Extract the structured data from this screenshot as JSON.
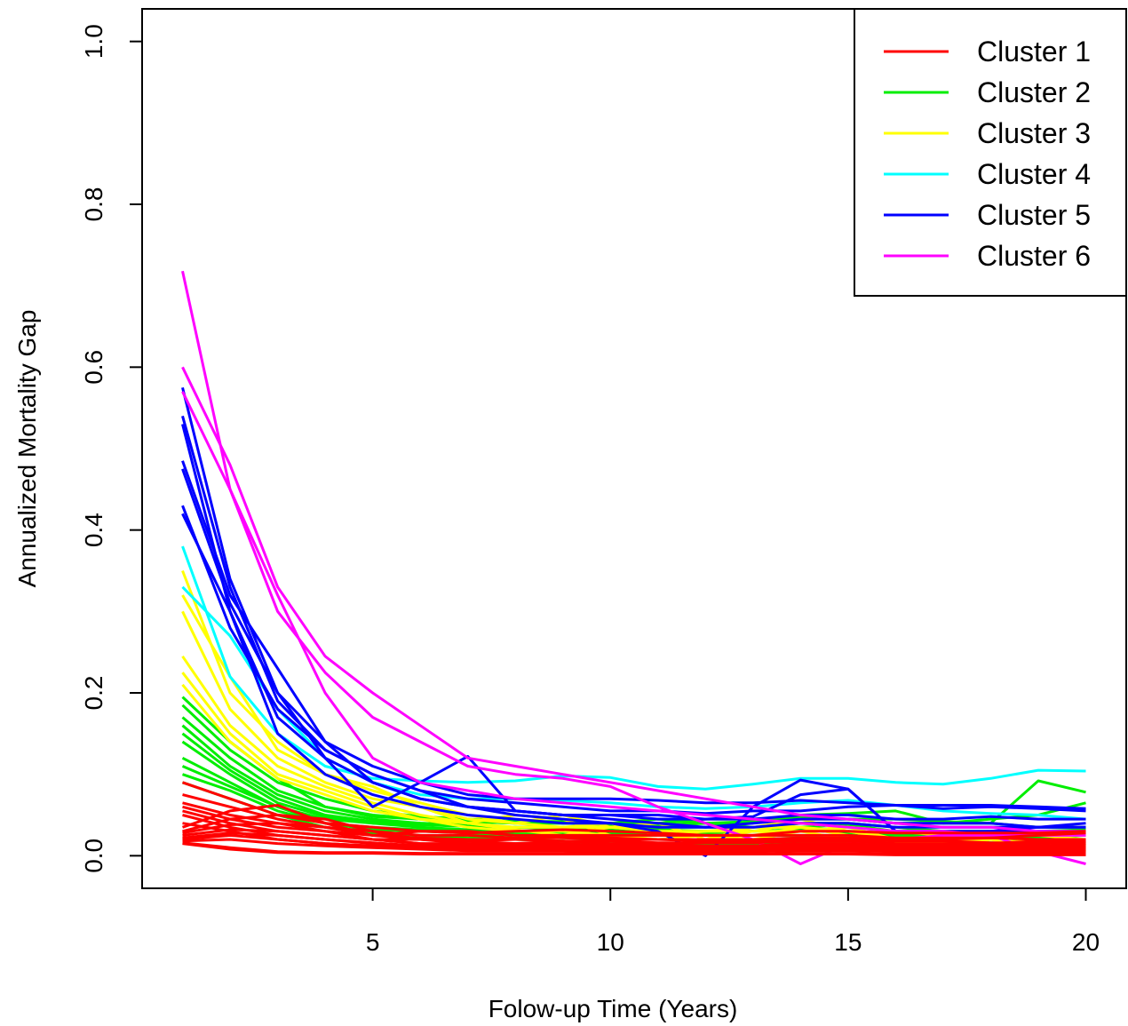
{
  "chart_data": {
    "type": "line",
    "title": "",
    "xlabel": "Folow-up Time (Years)",
    "ylabel": "Annualized Mortality Gap",
    "xlim": [
      0.15,
      20.85
    ],
    "ylim": [
      -0.04,
      1.04
    ],
    "xticks": [
      5,
      10,
      15,
      20
    ],
    "yticks": [
      0.0,
      0.2,
      0.4,
      0.6,
      0.8,
      1.0
    ],
    "xtick_labels": [
      "5",
      "10",
      "15",
      "20"
    ],
    "ytick_labels": [
      "0.0",
      "0.2",
      "0.4",
      "0.6",
      "0.8",
      "1.0"
    ],
    "grid": false,
    "legend_position": "top-right",
    "legend": [
      {
        "name": "Cluster 1",
        "color": "#ff0000"
      },
      {
        "name": "Cluster 2",
        "color": "#00ee00"
      },
      {
        "name": "Cluster 3",
        "color": "#ffff00"
      },
      {
        "name": "Cluster 4",
        "color": "#00ffff"
      },
      {
        "name": "Cluster 5",
        "color": "#0000ff"
      },
      {
        "name": "Cluster 6",
        "color": "#ff00ff"
      }
    ],
    "x": [
      1,
      2,
      3,
      4,
      5,
      6,
      7,
      8,
      9,
      10,
      11,
      12,
      13,
      14,
      15,
      16,
      17,
      18,
      19,
      20
    ],
    "series": [
      {
        "cluster": 2,
        "values": [
          0.195,
          0.14,
          0.095,
          0.06,
          0.048,
          0.045,
          0.042,
          0.04,
          0.04,
          0.038,
          0.038,
          0.04,
          0.042,
          0.045,
          0.045,
          0.04,
          0.04,
          0.04,
          0.092,
          0.078
        ]
      },
      {
        "cluster": 2,
        "values": [
          0.185,
          0.13,
          0.09,
          0.07,
          0.055,
          0.048,
          0.045,
          0.042,
          0.042,
          0.04,
          0.045,
          0.04,
          0.04,
          0.05,
          0.052,
          0.055,
          0.04,
          0.045,
          0.05,
          0.065
        ]
      },
      {
        "cluster": 2,
        "values": [
          0.17,
          0.12,
          0.08,
          0.06,
          0.05,
          0.045,
          0.042,
          0.04,
          0.04,
          0.04,
          0.04,
          0.045,
          0.045,
          0.048,
          0.045,
          0.045,
          0.042,
          0.04,
          0.035,
          0.035
        ]
      },
      {
        "cluster": 2,
        "values": [
          0.16,
          0.11,
          0.075,
          0.055,
          0.045,
          0.04,
          0.038,
          0.035,
          0.035,
          0.035,
          0.035,
          0.035,
          0.035,
          0.04,
          0.04,
          0.035,
          0.03,
          0.03,
          0.03,
          0.032
        ]
      },
      {
        "cluster": 2,
        "values": [
          0.15,
          0.105,
          0.07,
          0.05,
          0.042,
          0.04,
          0.038,
          0.035,
          0.035,
          0.035,
          0.036,
          0.04,
          0.035,
          0.035,
          0.038,
          0.03,
          0.03,
          0.03,
          0.028,
          0.03
        ]
      },
      {
        "cluster": 2,
        "values": [
          0.14,
          0.1,
          0.065,
          0.048,
          0.04,
          0.038,
          0.036,
          0.035,
          0.033,
          0.032,
          0.032,
          0.03,
          0.03,
          0.032,
          0.03,
          0.028,
          0.028,
          0.025,
          0.025,
          0.025
        ]
      },
      {
        "cluster": 2,
        "values": [
          0.12,
          0.09,
          0.06,
          0.045,
          0.04,
          0.035,
          0.032,
          0.03,
          0.03,
          0.028,
          0.028,
          0.028,
          0.03,
          0.032,
          0.028,
          0.025,
          0.025,
          0.025,
          0.022,
          0.025
        ]
      },
      {
        "cluster": 2,
        "values": [
          0.11,
          0.085,
          0.06,
          0.04,
          0.035,
          0.032,
          0.03,
          0.028,
          0.028,
          0.025,
          0.025,
          0.025,
          0.025,
          0.025,
          0.025,
          0.022,
          0.022,
          0.02,
          0.02,
          0.02
        ]
      },
      {
        "cluster": 2,
        "values": [
          0.1,
          0.08,
          0.055,
          0.04,
          0.032,
          0.03,
          0.028,
          0.025,
          0.022,
          0.02,
          0.02,
          0.02,
          0.02,
          0.022,
          0.02,
          0.018,
          0.018,
          0.016,
          0.015,
          0.015
        ]
      },
      {
        "cluster": 2,
        "values": [
          0.09,
          0.07,
          0.05,
          0.035,
          0.028,
          0.025,
          0.022,
          0.02,
          0.018,
          0.015,
          0.015,
          0.015,
          0.015,
          0.016,
          0.015,
          0.012,
          0.012,
          0.012,
          0.01,
          0.01
        ]
      },
      {
        "cluster": 3,
        "values": [
          0.35,
          0.2,
          0.14,
          0.1,
          0.08,
          0.065,
          0.05,
          0.04,
          0.035,
          0.035,
          0.03,
          0.03,
          0.03,
          0.04,
          0.035,
          0.03,
          0.025,
          0.025,
          0.025,
          0.025
        ]
      },
      {
        "cluster": 3,
        "values": [
          0.32,
          0.22,
          0.13,
          0.1,
          0.085,
          0.06,
          0.04,
          0.05,
          0.045,
          0.025,
          0.02,
          0.02,
          0.03,
          0.03,
          0.035,
          0.02,
          0.015,
          0.025,
          0.025,
          0.02
        ]
      },
      {
        "cluster": 3,
        "values": [
          0.3,
          0.18,
          0.12,
          0.09,
          0.07,
          0.06,
          0.045,
          0.04,
          0.05,
          0.035,
          0.04,
          0.02,
          0.035,
          0.045,
          0.03,
          0.02,
          0.02,
          0.015,
          0.02,
          0.015
        ]
      },
      {
        "cluster": 3,
        "values": [
          0.245,
          0.16,
          0.11,
          0.085,
          0.065,
          0.05,
          0.04,
          0.035,
          0.035,
          0.04,
          0.025,
          0.03,
          0.035,
          0.035,
          0.025,
          0.015,
          0.015,
          0.01,
          0.015,
          0.01
        ]
      },
      {
        "cluster": 3,
        "values": [
          0.225,
          0.15,
          0.1,
          0.08,
          0.06,
          0.045,
          0.04,
          0.032,
          0.025,
          0.035,
          0.03,
          0.025,
          0.025,
          0.035,
          0.03,
          0.02,
          0.01,
          0.02,
          0.015,
          0.005
        ]
      },
      {
        "cluster": 3,
        "values": [
          0.21,
          0.14,
          0.095,
          0.075,
          0.055,
          0.045,
          0.035,
          0.03,
          0.03,
          0.025,
          0.02,
          0.025,
          0.02,
          0.03,
          0.02,
          0.015,
          0.015,
          0.02,
          0.01,
          0.015
        ]
      },
      {
        "cluster": 4,
        "values": [
          0.38,
          0.22,
          0.15,
          0.11,
          0.095,
          0.092,
          0.09,
          0.092,
          0.098,
          0.096,
          0.085,
          0.082,
          0.088,
          0.095,
          0.095,
          0.09,
          0.088,
          0.095,
          0.105,
          0.104
        ]
      },
      {
        "cluster": 4,
        "values": [
          0.33,
          0.27,
          0.18,
          0.12,
          0.09,
          0.075,
          0.07,
          0.07,
          0.068,
          0.065,
          0.06,
          0.058,
          0.06,
          0.065,
          0.068,
          0.062,
          0.055,
          0.052,
          0.05,
          0.045
        ]
      },
      {
        "cluster": 5,
        "values": [
          0.575,
          0.34,
          0.2,
          0.14,
          0.11,
          0.09,
          0.075,
          0.07,
          0.07,
          0.07,
          0.068,
          0.065,
          0.065,
          0.068,
          0.065,
          0.062,
          0.062,
          0.062,
          0.06,
          0.058
        ]
      },
      {
        "cluster": 5,
        "values": [
          0.54,
          0.33,
          0.19,
          0.13,
          0.1,
          0.08,
          0.07,
          0.065,
          0.06,
          0.055,
          0.055,
          0.052,
          0.055,
          0.055,
          0.06,
          0.062,
          0.058,
          0.06,
          0.058,
          0.055
        ]
      },
      {
        "cluster": 5,
        "values": [
          0.53,
          0.3,
          0.17,
          0.12,
          0.09,
          0.07,
          0.06,
          0.055,
          0.05,
          0.05,
          0.05,
          0.045,
          0.048,
          0.075,
          0.082,
          0.03,
          0.028,
          0.03,
          0.035,
          0.04
        ]
      },
      {
        "cluster": 5,
        "values": [
          0.485,
          0.32,
          0.23,
          0.14,
          0.09,
          0.07,
          0.06,
          0.055,
          0.05,
          0.05,
          0.045,
          0.045,
          0.045,
          0.05,
          0.05,
          0.045,
          0.045,
          0.048,
          0.045,
          0.045
        ]
      },
      {
        "cluster": 5,
        "values": [
          0.475,
          0.31,
          0.2,
          0.12,
          0.06,
          0.09,
          0.122,
          0.055,
          0.05,
          0.045,
          0.04,
          0.035,
          0.04,
          0.045,
          0.045,
          0.04,
          0.04,
          0.04,
          0.035,
          0.035
        ]
      },
      {
        "cluster": 5,
        "values": [
          0.43,
          0.28,
          0.18,
          0.13,
          0.1,
          0.08,
          0.06,
          0.05,
          0.045,
          0.04,
          0.03,
          0.0,
          0.06,
          0.093,
          0.082,
          0.03,
          0.03,
          0.03,
          0.03,
          0.03
        ]
      },
      {
        "cluster": 5,
        "values": [
          0.42,
          0.3,
          0.15,
          0.1,
          0.075,
          0.06,
          0.05,
          0.045,
          0.04,
          0.04,
          0.035,
          0.035,
          0.035,
          0.04,
          0.04,
          0.035,
          0.035,
          0.035,
          0.035,
          0.035
        ]
      },
      {
        "cluster": 6,
        "values": [
          0.718,
          0.45,
          0.3,
          0.225,
          0.17,
          0.14,
          0.11,
          0.1,
          0.095,
          0.085,
          0.06,
          0.04,
          0.02,
          -0.01,
          0.015,
          0.02,
          0.025,
          0.025,
          0.005,
          -0.01
        ]
      },
      {
        "cluster": 6,
        "values": [
          0.6,
          0.48,
          0.33,
          0.245,
          0.2,
          0.16,
          0.12,
          0.11,
          0.1,
          0.09,
          0.08,
          0.07,
          0.06,
          0.05,
          0.045,
          0.04,
          0.035,
          0.035,
          0.03,
          0.03
        ]
      },
      {
        "cluster": 6,
        "values": [
          0.57,
          0.45,
          0.32,
          0.2,
          0.12,
          0.09,
          0.08,
          0.07,
          0.065,
          0.06,
          0.055,
          0.05,
          0.045,
          0.04,
          0.035,
          0.03,
          0.03,
          0.025,
          0.025,
          0.025
        ]
      },
      {
        "cluster": 1,
        "values": [
          0.09,
          0.07,
          0.05,
          0.04,
          0.035,
          0.03,
          0.03,
          0.025,
          0.025,
          0.025,
          0.025,
          0.025,
          0.025,
          0.03,
          0.03,
          0.028,
          0.028,
          0.028,
          0.028,
          0.03
        ]
      },
      {
        "cluster": 1,
        "values": [
          0.075,
          0.06,
          0.045,
          0.035,
          0.03,
          0.025,
          0.025,
          0.022,
          0.022,
          0.02,
          0.02,
          0.02,
          0.02,
          0.022,
          0.022,
          0.02,
          0.02,
          0.022,
          0.025,
          0.028
        ]
      },
      {
        "cluster": 1,
        "values": [
          0.065,
          0.05,
          0.04,
          0.03,
          0.025,
          0.022,
          0.02,
          0.02,
          0.018,
          0.018,
          0.016,
          0.016,
          0.016,
          0.018,
          0.018,
          0.015,
          0.015,
          0.015,
          0.018,
          0.02
        ]
      },
      {
        "cluster": 1,
        "values": [
          0.06,
          0.045,
          0.035,
          0.03,
          0.02,
          0.02,
          0.018,
          0.015,
          0.015,
          0.012,
          0.012,
          0.012,
          0.012,
          0.015,
          0.015,
          0.012,
          0.012,
          0.015,
          0.015,
          0.018
        ]
      },
      {
        "cluster": 1,
        "values": [
          0.055,
          0.04,
          0.03,
          0.025,
          0.02,
          0.015,
          0.015,
          0.012,
          0.012,
          0.01,
          0.01,
          0.01,
          0.01,
          0.012,
          0.012,
          0.01,
          0.01,
          0.01,
          0.012,
          0.015
        ]
      },
      {
        "cluster": 1,
        "values": [
          0.05,
          0.035,
          0.025,
          0.02,
          0.015,
          0.012,
          0.01,
          0.01,
          0.01,
          0.008,
          0.008,
          0.008,
          0.008,
          0.01,
          0.01,
          0.008,
          0.008,
          0.008,
          0.01,
          0.012
        ]
      },
      {
        "cluster": 1,
        "values": [
          0.04,
          0.03,
          0.02,
          0.015,
          0.012,
          0.01,
          0.008,
          0.008,
          0.008,
          0.006,
          0.006,
          0.006,
          0.006,
          0.008,
          0.008,
          0.006,
          0.006,
          0.006,
          0.008,
          0.01
        ]
      },
      {
        "cluster": 1,
        "values": [
          0.035,
          0.055,
          0.062,
          0.04,
          0.025,
          0.03,
          0.028,
          0.03,
          0.032,
          0.03,
          0.028,
          0.025,
          0.025,
          0.025,
          0.025,
          0.022,
          0.022,
          0.022,
          0.02,
          0.02
        ]
      },
      {
        "cluster": 1,
        "values": [
          0.03,
          0.045,
          0.05,
          0.045,
          0.03,
          0.02,
          0.018,
          0.02,
          0.025,
          0.022,
          0.02,
          0.018,
          0.018,
          0.02,
          0.02,
          0.018,
          0.018,
          0.016,
          0.016,
          0.016
        ]
      },
      {
        "cluster": 1,
        "values": [
          0.028,
          0.038,
          0.04,
          0.035,
          0.025,
          0.02,
          0.015,
          0.015,
          0.018,
          0.015,
          0.015,
          0.012,
          0.012,
          0.015,
          0.015,
          0.012,
          0.012,
          0.012,
          0.012,
          0.012
        ]
      },
      {
        "cluster": 1,
        "values": [
          0.025,
          0.032,
          0.03,
          0.025,
          0.02,
          0.015,
          0.012,
          0.012,
          0.012,
          0.01,
          0.01,
          0.01,
          0.01,
          0.012,
          0.012,
          0.01,
          0.01,
          0.01,
          0.01,
          0.01
        ]
      },
      {
        "cluster": 1,
        "values": [
          0.022,
          0.028,
          0.025,
          0.02,
          0.016,
          0.012,
          0.01,
          0.01,
          0.01,
          0.008,
          0.008,
          0.008,
          0.008,
          0.01,
          0.01,
          0.008,
          0.008,
          0.008,
          0.008,
          0.008
        ]
      },
      {
        "cluster": 1,
        "values": [
          0.02,
          0.025,
          0.02,
          0.015,
          0.012,
          0.01,
          0.008,
          0.008,
          0.008,
          0.006,
          0.006,
          0.006,
          0.006,
          0.008,
          0.008,
          0.006,
          0.006,
          0.006,
          0.006,
          0.006
        ]
      },
      {
        "cluster": 1,
        "values": [
          0.018,
          0.02,
          0.015,
          0.012,
          0.01,
          0.008,
          0.006,
          0.006,
          0.006,
          0.005,
          0.005,
          0.005,
          0.005,
          0.006,
          0.006,
          0.005,
          0.005,
          0.005,
          0.005,
          0.005
        ]
      },
      {
        "cluster": 1,
        "values": [
          0.016,
          0.01,
          0.005,
          0.004,
          0.004,
          0.003,
          0.003,
          0.003,
          0.003,
          0.003,
          0.003,
          0.002,
          0.002,
          0.003,
          0.003,
          0.002,
          0.002,
          0.002,
          0.002,
          0.002
        ]
      },
      {
        "cluster": 1,
        "values": [
          0.015,
          0.008,
          0.004,
          0.003,
          0.003,
          0.002,
          0.002,
          0.002,
          0.002,
          0.002,
          0.002,
          0.002,
          0.002,
          0.002,
          0.002,
          0.001,
          0.001,
          0.001,
          0.001,
          0.001
        ]
      }
    ]
  }
}
